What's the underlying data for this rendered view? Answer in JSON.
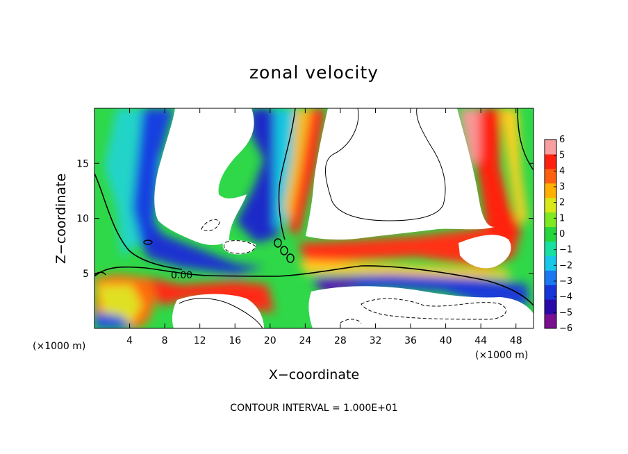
{
  "chart_data": {
    "type": "heatmap",
    "title": "zonal velocity",
    "xlabel": "X−coordinate",
    "ylabel": "Z−coordinate",
    "x_unit": "(×1000 m)",
    "y_unit": "(×1000 m)",
    "xlim": [
      0,
      50
    ],
    "ylim": [
      0,
      20
    ],
    "x_ticks": [
      4,
      8,
      12,
      16,
      20,
      24,
      28,
      32,
      36,
      40,
      44,
      48
    ],
    "y_ticks": [
      5,
      10,
      15
    ],
    "x_tick_labels": [
      "4",
      "8",
      "12",
      "16",
      "20",
      "24",
      "28",
      "32",
      "36",
      "40",
      "44",
      "48"
    ],
    "y_tick_labels": [
      "5",
      "10",
      "15"
    ],
    "colorbar": {
      "range": [
        -6,
        6
      ],
      "tick_labels": [
        "6",
        "5",
        "4",
        "3",
        "2",
        "1",
        "0",
        "−1",
        "−2",
        "−3",
        "−4",
        "−5",
        "−6"
      ],
      "colors": [
        "#7a1090",
        "#2a0aa8",
        "#1535d8",
        "#1a78f0",
        "#18c8e8",
        "#18e0a0",
        "#26d63c",
        "#7ee820",
        "#d8e818",
        "#ffb000",
        "#ff6010",
        "#ff2010",
        "#f8a0a0"
      ]
    },
    "contour_label": "0.00",
    "footer": "CONTOUR INTERVAL = 1.000E+01",
    "fields": [
      {
        "x": 3,
        "z": 18,
        "u": -2
      },
      {
        "x": 6,
        "z": 17,
        "u": -4
      },
      {
        "x": 11,
        "z": 7,
        "u": -5
      },
      {
        "x": 5,
        "z": 3,
        "u": 4
      },
      {
        "x": 2,
        "z": 3,
        "u": 3
      },
      {
        "x": 18,
        "z": 12,
        "u": -5
      },
      {
        "x": 21,
        "z": 5,
        "u": 1
      },
      {
        "x": 24,
        "z": 14,
        "u": 5
      },
      {
        "x": 30,
        "z": 6,
        "u": 4
      },
      {
        "x": 36,
        "z": 3,
        "u": -4
      },
      {
        "x": 44,
        "z": 14,
        "u": 5
      },
      {
        "x": 49,
        "z": 10,
        "u": 1
      }
    ]
  }
}
